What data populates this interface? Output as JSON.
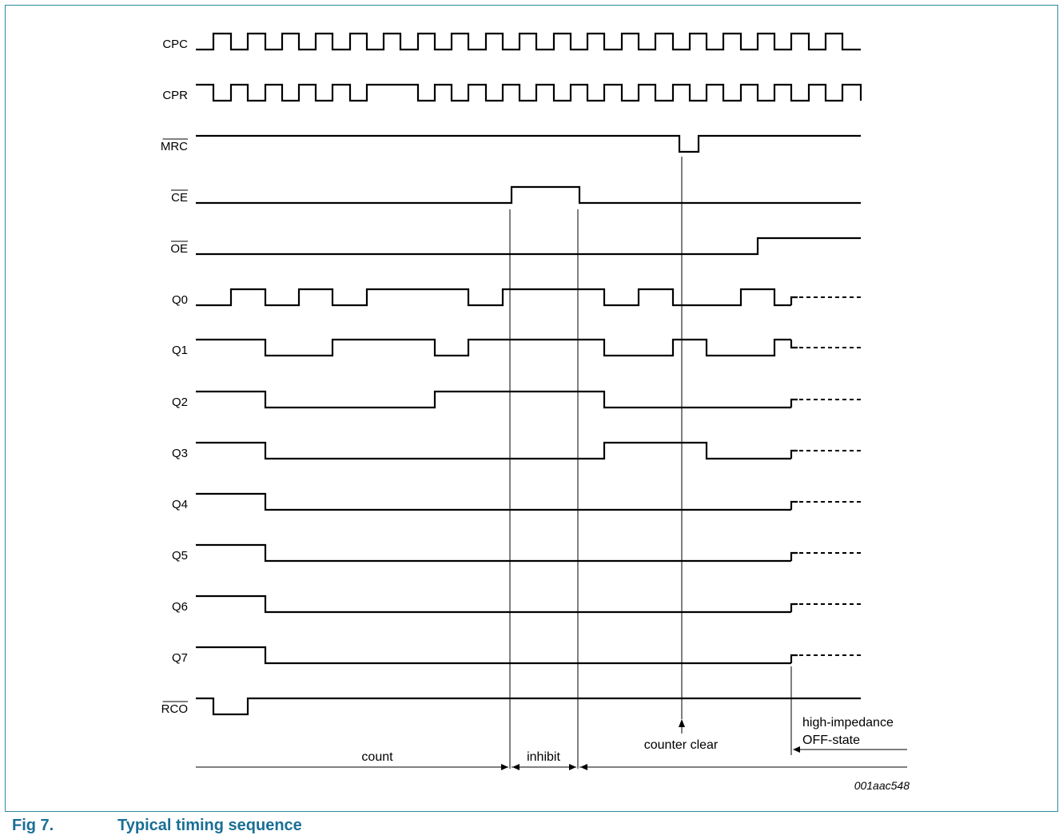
{
  "signals": [
    {
      "name": "CPC",
      "overbar": false
    },
    {
      "name": "CPR",
      "overbar": false
    },
    {
      "name": "MRC",
      "overbar": true
    },
    {
      "name": "CE",
      "overbar": true
    },
    {
      "name": "OE",
      "overbar": true
    },
    {
      "name": "Q0",
      "overbar": false
    },
    {
      "name": "Q1",
      "overbar": false
    },
    {
      "name": "Q2",
      "overbar": false
    },
    {
      "name": "Q3",
      "overbar": false
    },
    {
      "name": "Q4",
      "overbar": false
    },
    {
      "name": "Q5",
      "overbar": false
    },
    {
      "name": "Q6",
      "overbar": false
    },
    {
      "name": "Q7",
      "overbar": false
    },
    {
      "name": "RCO",
      "overbar": true
    }
  ],
  "annotations": {
    "count": "count",
    "inhibit": "inhibit",
    "counter_clear": "counter clear",
    "high_impedance_line1": "high-impedance",
    "high_impedance_line2": "OFF-state"
  },
  "doc_id": "001aac548",
  "caption": {
    "number": "Fig 7.",
    "title": "Typical timing sequence"
  },
  "colors": {
    "frame": "#2a8ba0",
    "caption": "#1a6f95",
    "trace": "#000000"
  }
}
